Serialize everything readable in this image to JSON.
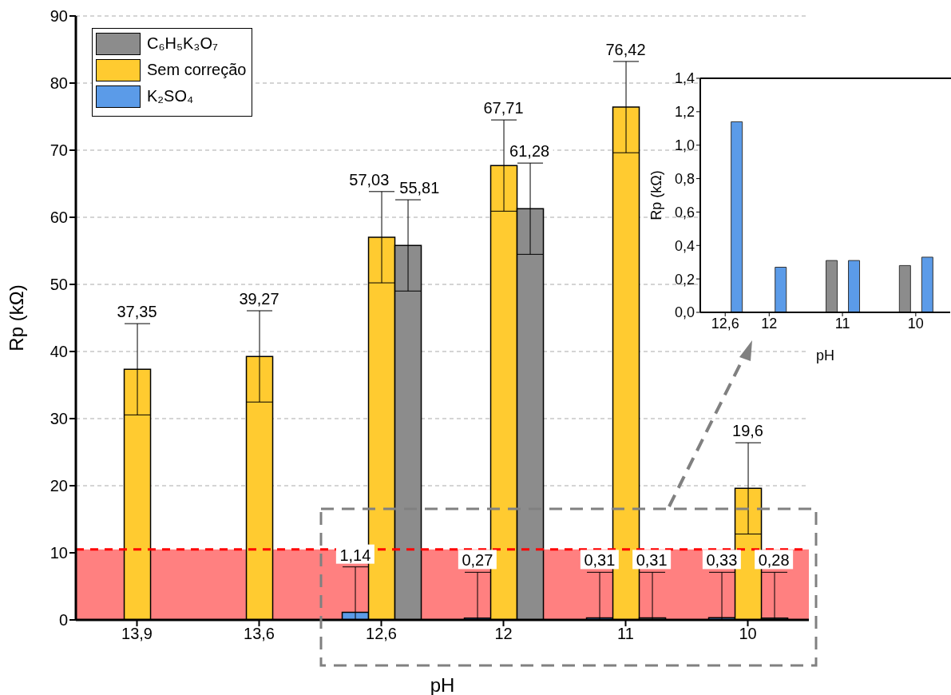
{
  "chart_data": [
    {
      "type": "bar",
      "xlabel": "pH",
      "ylabel": "Rp (kΩ)",
      "categories": [
        "13,9",
        "13,6",
        "12,6",
        "12",
        "11",
        "10"
      ],
      "series": [
        {
          "name": "C₆H₅K₃O₇",
          "color": "#8c8c8c",
          "values": [
            null,
            null,
            55.81,
            61.28,
            0.31,
            0.28
          ],
          "errors": [
            null,
            null,
            6.8,
            6.8,
            [
              0,
              7.1
            ],
            [
              0,
              7.1
            ]
          ],
          "value_labels": [
            null,
            null,
            "55,81",
            "61,28",
            "0,31",
            "0,28"
          ]
        },
        {
          "name": "Sem correção",
          "color": "#ffcb30",
          "values": [
            37.35,
            39.27,
            57.03,
            67.71,
            76.42,
            19.6
          ],
          "errors": [
            6.8,
            6.8,
            6.8,
            6.8,
            6.8,
            6.8
          ],
          "value_labels": [
            "37,35",
            "39,27",
            "57,03",
            "67,71",
            "76,42",
            "19,6"
          ]
        },
        {
          "name": "K₂SO₄",
          "color": "#5b9be8",
          "values": [
            null,
            null,
            1.14,
            0.27,
            0.31,
            0.33
          ],
          "errors": [
            null,
            null,
            [
              0,
              7.9
            ],
            [
              0,
              7.1
            ],
            [
              0,
              7.1
            ],
            [
              0,
              7.1
            ]
          ],
          "value_labels": [
            null,
            null,
            "1,14",
            "0,27",
            "0,31",
            "0,33"
          ]
        }
      ],
      "ylim": [
        0,
        90
      ],
      "yticks": [
        0,
        10,
        20,
        30,
        40,
        50,
        60,
        70,
        80,
        90
      ],
      "grid": "y",
      "legend": "top left",
      "bands": [
        {
          "axis": "y",
          "from": 0,
          "to": 10.5,
          "color": "#ff8080"
        }
      ],
      "ref_lines": [
        {
          "axis": "y",
          "value": 10.5,
          "color": "#ff0000",
          "line_style": "dashed"
        }
      ]
    },
    {
      "type": "bar",
      "xlabel": "pH",
      "ylabel": "Rp (kΩ)",
      "x": [
        12.6,
        12,
        11,
        10
      ],
      "series": [
        {
          "color": "#8c8c8c",
          "values": [
            null,
            null,
            0.31,
            0.28
          ]
        },
        {
          "color": "#ffcb30",
          "values": [
            null,
            null,
            null,
            null
          ]
        },
        {
          "color": "#5b9be8",
          "values": [
            1.14,
            0.27,
            0.31,
            0.33
          ]
        }
      ],
      "xlim": [
        12.94,
        9.53
      ],
      "xticks": [
        {
          "value": 12.6,
          "label": "12,6"
        },
        {
          "value": 12,
          "label": "12"
        },
        {
          "value": 11,
          "label": "11"
        },
        {
          "value": 10,
          "label": "10"
        }
      ],
      "ylim": [
        0,
        1.4
      ],
      "yticks": [
        {
          "value": 0,
          "label": "0,0"
        },
        {
          "value": 0.2,
          "label": "0,2"
        },
        {
          "value": 0.4,
          "label": "0,4"
        },
        {
          "value": 0.6,
          "label": "0,6"
        },
        {
          "value": 0.8,
          "label": "0,8"
        },
        {
          "value": 1,
          "label": "1,0"
        },
        {
          "value": 1.2,
          "label": "1,2"
        },
        {
          "value": 1.4,
          "label": "1,4"
        }
      ]
    }
  ]
}
